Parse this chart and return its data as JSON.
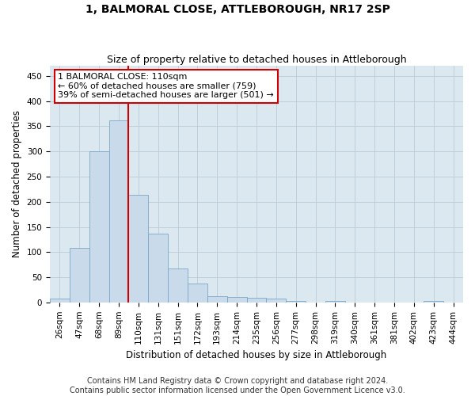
{
  "title": "1, BALMORAL CLOSE, ATTLEBOROUGH, NR17 2SP",
  "subtitle": "Size of property relative to detached houses in Attleborough",
  "xlabel": "Distribution of detached houses by size in Attleborough",
  "ylabel": "Number of detached properties",
  "bar_labels": [
    "26sqm",
    "47sqm",
    "68sqm",
    "89sqm",
    "110sqm",
    "131sqm",
    "151sqm",
    "172sqm",
    "193sqm",
    "214sqm",
    "235sqm",
    "256sqm",
    "277sqm",
    "298sqm",
    "319sqm",
    "340sqm",
    "361sqm",
    "381sqm",
    "402sqm",
    "423sqm",
    "444sqm"
  ],
  "bar_values": [
    8,
    108,
    301,
    362,
    213,
    137,
    68,
    38,
    13,
    10,
    9,
    7,
    3,
    0,
    3,
    0,
    0,
    0,
    0,
    3,
    0
  ],
  "bar_color": "#c9daea",
  "bar_edge_color": "#7ba7c8",
  "property_line_index": 4,
  "property_line_color": "#cc0000",
  "annotation_text": "1 BALMORAL CLOSE: 110sqm\n← 60% of detached houses are smaller (759)\n39% of semi-detached houses are larger (501) →",
  "annotation_box_facecolor": "#ffffff",
  "annotation_box_edgecolor": "#cc0000",
  "ylim": [
    0,
    470
  ],
  "yticks": [
    0,
    50,
    100,
    150,
    200,
    250,
    300,
    350,
    400,
    450
  ],
  "plot_bg_color": "#dce8f0",
  "fig_bg_color": "#ffffff",
  "grid_color": "#b8ccd8",
  "title_fontsize": 10,
  "subtitle_fontsize": 9,
  "axis_label_fontsize": 8.5,
  "tick_fontsize": 7.5,
  "annotation_fontsize": 8,
  "footer_fontsize": 7,
  "footer_line1": "Contains HM Land Registry data © Crown copyright and database right 2024.",
  "footer_line2": "Contains public sector information licensed under the Open Government Licence v3.0."
}
